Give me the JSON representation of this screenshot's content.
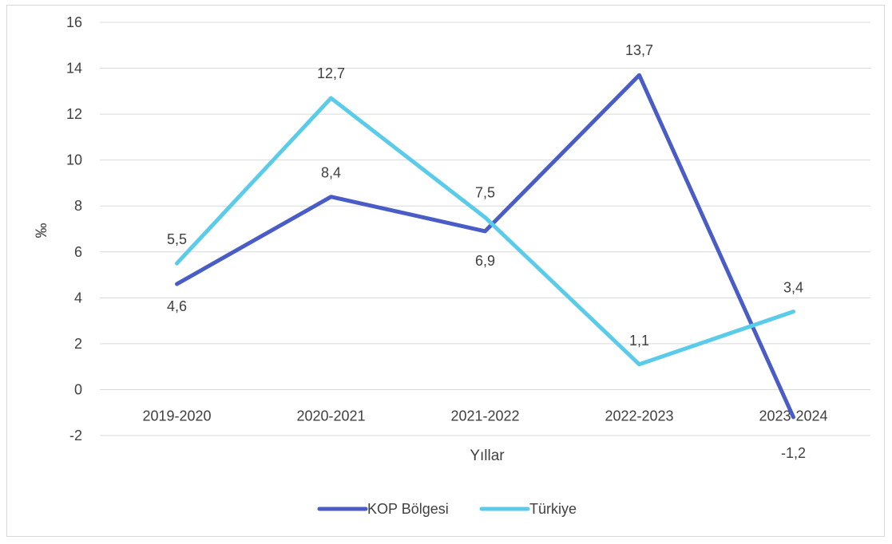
{
  "chart_data": {
    "type": "line",
    "categories": [
      "2019-2020",
      "2020-2021",
      "2021-2022",
      "2022-2023",
      "2023-2024"
    ],
    "series": [
      {
        "name": "KOP Bölgesi",
        "values": [
          4.6,
          8.4,
          6.9,
          13.7,
          -1.2
        ],
        "labels": [
          "4,6",
          "8,4",
          "6,9",
          "13,7",
          "-1,2"
        ],
        "color": "#4A5DC6"
      },
      {
        "name": "Türkiye",
        "values": [
          5.5,
          12.7,
          7.5,
          1.1,
          3.4
        ],
        "labels": [
          "5,5",
          "12,7",
          "7,5",
          "1,1",
          "3,4"
        ],
        "color": "#5BCBEA"
      }
    ],
    "yticks": [
      "-2",
      "0",
      "2",
      "4",
      "6",
      "8",
      "10",
      "12",
      "14",
      "16"
    ],
    "ylim": [
      -2,
      16
    ],
    "xlabel": "Yıllar",
    "ylabel": "‰",
    "grid": true,
    "legend": "bottom"
  }
}
